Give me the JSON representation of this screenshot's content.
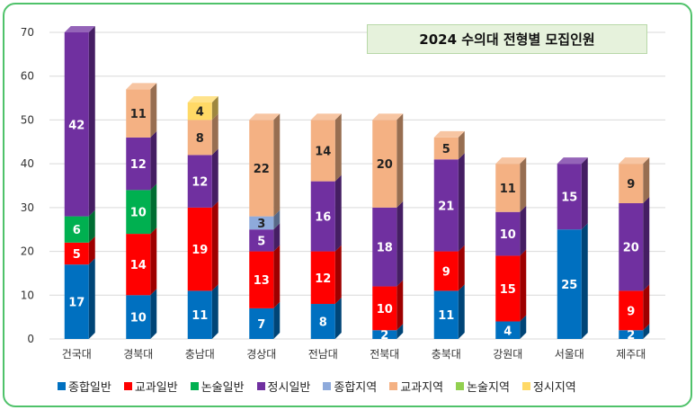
{
  "chart_data": {
    "type": "bar",
    "stacked": true,
    "title": "2024 수의대 전형별 모집인원",
    "xlabel": "",
    "ylabel": "",
    "ylim": [
      0,
      70
    ],
    "yticks": [
      0,
      10,
      20,
      30,
      40,
      50,
      60,
      70
    ],
    "grid": true,
    "legend_position": "bottom",
    "categories": [
      "건국대",
      "경북대",
      "충남대",
      "경상대",
      "전남대",
      "전북대",
      "충북대",
      "강원대",
      "서울대",
      "제주대"
    ],
    "series": [
      {
        "name": "종합일반",
        "color": "#0070c0",
        "values": [
          17,
          10,
          11,
          7,
          8,
          2,
          11,
          4,
          25,
          2
        ]
      },
      {
        "name": "교과일반",
        "color": "#ff0000",
        "values": [
          5,
          14,
          19,
          13,
          12,
          10,
          9,
          15,
          0,
          9
        ]
      },
      {
        "name": "논술일반",
        "color": "#00b050",
        "values": [
          6,
          10,
          0,
          0,
          0,
          0,
          0,
          0,
          0,
          0
        ]
      },
      {
        "name": "정시일반",
        "color": "#7030a0",
        "values": [
          42,
          12,
          12,
          5,
          16,
          18,
          21,
          10,
          15,
          20
        ]
      },
      {
        "name": "종합지역",
        "color": "#8eaadb",
        "values": [
          0,
          0,
          0,
          3,
          0,
          0,
          0,
          0,
          0,
          0
        ]
      },
      {
        "name": "교과지역",
        "color": "#f4b183",
        "values": [
          0,
          11,
          8,
          22,
          14,
          20,
          5,
          11,
          0,
          9
        ]
      },
      {
        "name": "논술지역",
        "color": "#92d050",
        "values": [
          0,
          0,
          0,
          0,
          0,
          0,
          0,
          0,
          0,
          0
        ]
      },
      {
        "name": "정시지역",
        "color": "#ffd966",
        "values": [
          0,
          0,
          4,
          0,
          0,
          0,
          0,
          0,
          0,
          0
        ]
      }
    ]
  }
}
